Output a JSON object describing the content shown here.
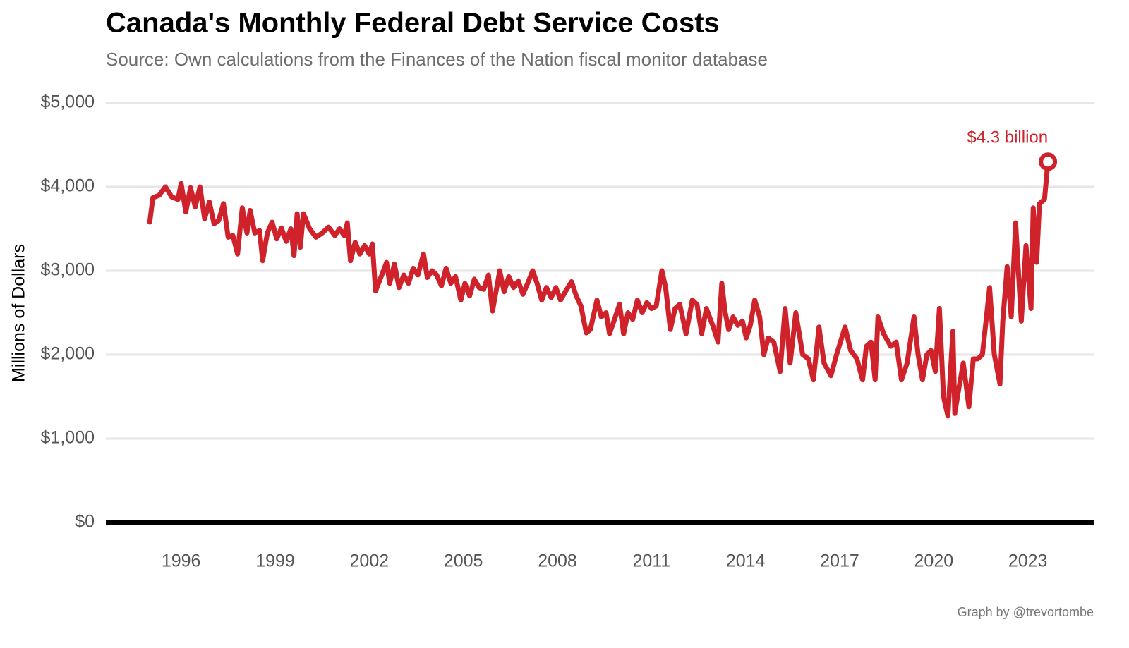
{
  "chart_data": {
    "type": "line",
    "title": "Canada's Monthly Federal Debt Service Costs",
    "subtitle": "Source: Own calculations from the Finances of the Nation fiscal monitor database",
    "y_label": "Millions of Dollars",
    "credit": "Graph by @trevortombe",
    "annotation": "$4.3 billion",
    "grid": true,
    "xlim": [
      1993.6,
      2025.1
    ],
    "xticks": [
      1996,
      1999,
      2002,
      2005,
      2008,
      2011,
      2014,
      2017,
      2020,
      2023
    ],
    "ylim": [
      0,
      5000
    ],
    "yticks": [
      {
        "value": 0,
        "label": "$0"
      },
      {
        "value": 1000,
        "label": "$1,000"
      },
      {
        "value": 2000,
        "label": "$2,000"
      },
      {
        "value": 3000,
        "label": "$3,000"
      },
      {
        "value": 4000,
        "label": "$4,000"
      },
      {
        "value": 5000,
        "label": "$5,000"
      }
    ],
    "x": [
      1995.0,
      1995.1,
      1995.3,
      1995.5,
      1995.7,
      1995.9,
      1996.0,
      1996.15,
      1996.3,
      1996.45,
      1996.6,
      1996.75,
      1996.9,
      1997.05,
      1997.2,
      1997.35,
      1997.5,
      1997.65,
      1997.8,
      1997.95,
      1998.1,
      1998.2,
      1998.35,
      1998.5,
      1998.6,
      1998.75,
      1998.9,
      1999.05,
      1999.2,
      1999.35,
      1999.5,
      1999.6,
      1999.7,
      1999.8,
      1999.9,
      2000.1,
      2000.3,
      2000.5,
      2000.7,
      2000.9,
      2001.05,
      2001.2,
      2001.3,
      2001.4,
      2001.55,
      2001.7,
      2001.85,
      2002.0,
      2002.1,
      2002.2,
      2002.4,
      2002.55,
      2002.65,
      2002.8,
      2002.95,
      2003.1,
      2003.25,
      2003.4,
      2003.55,
      2003.73,
      2003.85,
      2004.0,
      2004.15,
      2004.3,
      2004.45,
      2004.6,
      2004.75,
      2004.92,
      2005.05,
      2005.2,
      2005.35,
      2005.5,
      2005.65,
      2005.8,
      2005.93,
      2006.16,
      2006.3,
      2006.45,
      2006.6,
      2006.75,
      2006.9,
      2007.05,
      2007.21,
      2007.35,
      2007.5,
      2007.65,
      2007.8,
      2007.95,
      2008.1,
      2008.25,
      2008.45,
      2008.6,
      2008.75,
      2008.92,
      2009.05,
      2009.26,
      2009.4,
      2009.55,
      2009.66,
      2009.8,
      2009.98,
      2010.11,
      2010.25,
      2010.4,
      2010.55,
      2010.7,
      2010.85,
      2011.0,
      2011.15,
      2011.33,
      2011.45,
      2011.6,
      2011.75,
      2011.9,
      2012.1,
      2012.3,
      2012.45,
      2012.6,
      2012.75,
      2012.95,
      2013.12,
      2013.24,
      2013.35,
      2013.46,
      2013.6,
      2013.75,
      2013.9,
      2014.02,
      2014.15,
      2014.29,
      2014.45,
      2014.58,
      2014.72,
      2014.9,
      2015.1,
      2015.26,
      2015.42,
      2015.6,
      2015.82,
      2016.0,
      2016.16,
      2016.34,
      2016.5,
      2016.72,
      2016.9,
      2017.17,
      2017.35,
      2017.55,
      2017.73,
      2017.85,
      2018.0,
      2018.13,
      2018.22,
      2018.4,
      2018.63,
      2018.8,
      2018.97,
      2019.15,
      2019.37,
      2019.5,
      2019.64,
      2019.78,
      2019.91,
      2020.05,
      2020.18,
      2020.31,
      2020.45,
      2020.61,
      2020.67,
      2020.8,
      2020.94,
      2021.12,
      2021.26,
      2021.4,
      2021.55,
      2021.78,
      2021.93,
      2022.11,
      2022.2,
      2022.34,
      2022.47,
      2022.61,
      2022.79,
      2022.94,
      2023.1,
      2023.17,
      2023.28,
      2023.37,
      2023.53,
      2023.64
    ],
    "series": [
      {
        "name": "Debt service costs",
        "color": "#cf222b",
        "values": [
          3580,
          3870,
          3900,
          4000,
          3880,
          3850,
          4040,
          3700,
          3990,
          3760,
          4000,
          3620,
          3820,
          3560,
          3600,
          3800,
          3400,
          3420,
          3200,
          3750,
          3450,
          3720,
          3450,
          3480,
          3120,
          3450,
          3580,
          3380,
          3510,
          3350,
          3500,
          3180,
          3680,
          3280,
          3680,
          3500,
          3400,
          3450,
          3520,
          3420,
          3500,
          3420,
          3570,
          3120,
          3340,
          3200,
          3300,
          3200,
          3320,
          2760,
          2950,
          3100,
          2850,
          3080,
          2800,
          2950,
          2850,
          3030,
          2950,
          3200,
          2920,
          3000,
          2950,
          2820,
          3030,
          2850,
          2930,
          2650,
          2850,
          2700,
          2900,
          2800,
          2780,
          2950,
          2520,
          3000,
          2750,
          2930,
          2800,
          2880,
          2720,
          2850,
          3000,
          2850,
          2650,
          2800,
          2680,
          2800,
          2650,
          2750,
          2870,
          2700,
          2580,
          2260,
          2300,
          2650,
          2450,
          2500,
          2250,
          2400,
          2600,
          2250,
          2500,
          2420,
          2650,
          2500,
          2620,
          2550,
          2580,
          3000,
          2800,
          2300,
          2550,
          2600,
          2250,
          2650,
          2600,
          2250,
          2550,
          2350,
          2150,
          2850,
          2500,
          2300,
          2450,
          2350,
          2400,
          2200,
          2350,
          2650,
          2450,
          2000,
          2200,
          2150,
          1800,
          2550,
          1900,
          2500,
          2000,
          1950,
          1700,
          2330,
          1900,
          1750,
          2000,
          2330,
          2050,
          1950,
          1700,
          2100,
          2150,
          1700,
          2450,
          2250,
          2100,
          2150,
          1700,
          1900,
          2450,
          2000,
          1700,
          2000,
          2050,
          1800,
          2550,
          1500,
          1270,
          2280,
          1300,
          1600,
          1900,
          1380,
          1950,
          1950,
          2000,
          2800,
          2000,
          1650,
          2400,
          3050,
          2450,
          3570,
          2400,
          3300,
          2550,
          3750,
          3100,
          3800,
          3850,
          4300
        ]
      }
    ]
  }
}
